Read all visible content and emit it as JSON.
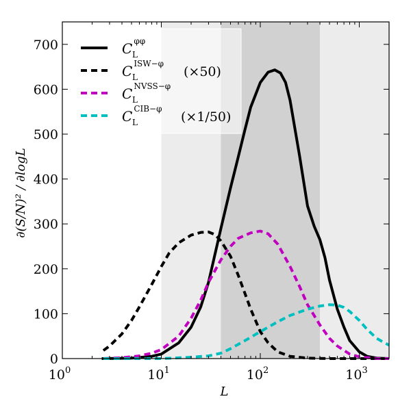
{
  "chart_data": {
    "type": "line",
    "xscale": "log",
    "xlim": [
      1,
      2000
    ],
    "ylim": [
      0,
      750
    ],
    "xlabel": "L",
    "ylabel": "∂(S/N)² / ∂logL",
    "x_ticks": [
      {
        "value": 1,
        "base": "10",
        "exp": "0"
      },
      {
        "value": 10,
        "base": "10",
        "exp": "1"
      },
      {
        "value": 100,
        "base": "10",
        "exp": "2"
      },
      {
        "value": 1000,
        "base": "10",
        "exp": "3"
      }
    ],
    "y_ticks": [
      0,
      100,
      200,
      300,
      400,
      500,
      600,
      700
    ],
    "shaded_bands": [
      {
        "from": 10,
        "to": 40,
        "shade": "#ececec",
        "opacity": 1
      },
      {
        "from": 40,
        "to": 400,
        "shade": "#d1d1d1",
        "opacity": 1
      },
      {
        "from": 400,
        "to": 2000,
        "shade": "#ececec",
        "opacity": 1
      }
    ],
    "series": [
      {
        "name": "C_L^{φφ}",
        "legend_main": "C",
        "legend_sub": "L",
        "legend_sup": "φφ",
        "legend_note": "",
        "color": "#000000",
        "dashed": false,
        "width": 4,
        "points": [
          [
            2.5,
            0
          ],
          [
            5,
            1
          ],
          [
            8,
            5
          ],
          [
            10,
            10
          ],
          [
            15,
            35
          ],
          [
            20,
            70
          ],
          [
            25,
            115
          ],
          [
            30,
            170
          ],
          [
            40,
            290
          ],
          [
            50,
            380
          ],
          [
            60,
            450
          ],
          [
            70,
            510
          ],
          [
            80,
            560
          ],
          [
            100,
            615
          ],
          [
            120,
            638
          ],
          [
            140,
            643
          ],
          [
            160,
            636
          ],
          [
            180,
            615
          ],
          [
            200,
            575
          ],
          [
            250,
            450
          ],
          [
            300,
            340
          ],
          [
            350,
            295
          ],
          [
            400,
            265
          ],
          [
            450,
            225
          ],
          [
            500,
            175
          ],
          [
            600,
            110
          ],
          [
            700,
            70
          ],
          [
            800,
            40
          ],
          [
            1000,
            15
          ],
          [
            1200,
            5
          ],
          [
            1500,
            1
          ],
          [
            2000,
            0
          ]
        ]
      },
      {
        "name": "C_L^{ISW-φ} (×50)",
        "legend_main": "C",
        "legend_sub": "L",
        "legend_sup": "ISW−φ",
        "legend_note": "(×50)",
        "color": "#000000",
        "dashed": true,
        "width": 4,
        "points": [
          [
            2.6,
            18
          ],
          [
            3,
            28
          ],
          [
            4,
            55
          ],
          [
            5,
            85
          ],
          [
            6,
            115
          ],
          [
            8,
            165
          ],
          [
            10,
            205
          ],
          [
            12,
            235
          ],
          [
            15,
            258
          ],
          [
            20,
            275
          ],
          [
            25,
            281
          ],
          [
            30,
            282
          ],
          [
            35,
            276
          ],
          [
            40,
            262
          ],
          [
            50,
            228
          ],
          [
            60,
            185
          ],
          [
            70,
            145
          ],
          [
            80,
            110
          ],
          [
            100,
            60
          ],
          [
            120,
            35
          ],
          [
            150,
            15
          ],
          [
            200,
            5
          ],
          [
            300,
            1
          ],
          [
            500,
            0
          ],
          [
            2000,
            0
          ]
        ]
      },
      {
        "name": "C_L^{NVSS-φ}",
        "legend_main": "C",
        "legend_sub": "L",
        "legend_sup": "NVSS−φ",
        "legend_note": "",
        "color": "#bf00bf",
        "dashed": true,
        "width": 4,
        "points": [
          [
            2.6,
            0
          ],
          [
            4,
            2
          ],
          [
            6,
            6
          ],
          [
            8,
            12
          ],
          [
            10,
            20
          ],
          [
            15,
            50
          ],
          [
            20,
            90
          ],
          [
            25,
            130
          ],
          [
            30,
            170
          ],
          [
            40,
            220
          ],
          [
            50,
            250
          ],
          [
            60,
            268
          ],
          [
            80,
            280
          ],
          [
            100,
            284
          ],
          [
            120,
            278
          ],
          [
            150,
            255
          ],
          [
            200,
            205
          ],
          [
            250,
            160
          ],
          [
            300,
            120
          ],
          [
            400,
            75
          ],
          [
            500,
            45
          ],
          [
            600,
            28
          ],
          [
            800,
            10
          ],
          [
            1000,
            4
          ],
          [
            1500,
            0
          ],
          [
            2000,
            0
          ]
        ]
      },
      {
        "name": "C_L^{CIB-φ} (×1/50)",
        "legend_main": "C",
        "legend_sub": "L",
        "legend_sup": "CIB−φ",
        "legend_note": "(×1/50)",
        "color": "#00bfbf",
        "dashed": true,
        "width": 4,
        "points": [
          [
            2.6,
            0
          ],
          [
            10,
            0
          ],
          [
            20,
            3
          ],
          [
            30,
            6
          ],
          [
            40,
            12
          ],
          [
            50,
            22
          ],
          [
            70,
            40
          ],
          [
            100,
            60
          ],
          [
            150,
            82
          ],
          [
            200,
            96
          ],
          [
            300,
            110
          ],
          [
            400,
            117
          ],
          [
            500,
            120
          ],
          [
            600,
            119
          ],
          [
            700,
            114
          ],
          [
            800,
            105
          ],
          [
            1000,
            85
          ],
          [
            1200,
            65
          ],
          [
            1500,
            45
          ],
          [
            1800,
            35
          ],
          [
            2000,
            30
          ]
        ]
      }
    ],
    "legend": {
      "position": "top-left",
      "frame_color": "#ffffff"
    }
  }
}
